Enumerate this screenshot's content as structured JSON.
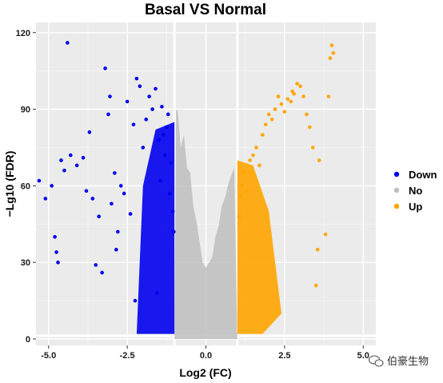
{
  "chart_data": {
    "type": "scatter",
    "title": "Basal VS Normal",
    "xlabel": "Log2 (FC)",
    "ylabel": "−Lg10 (FDR)",
    "xlim": [
      -5.4,
      5.4
    ],
    "ylim": [
      -2.5,
      124
    ],
    "x_ticks": [
      -5.0,
      -2.5,
      0.0,
      2.5,
      5.0
    ],
    "x_tick_labels": [
      "-5.0",
      "-2.5",
      "0.0",
      "2.5",
      "5.0"
    ],
    "y_ticks": [
      0,
      30,
      60,
      90,
      120
    ],
    "y_tick_labels": [
      "0",
      "30",
      "60",
      "90",
      "120"
    ],
    "threshold_lines": {
      "log2fc": [
        -1,
        1
      ],
      "neg_log10_fdr": 1.3
    },
    "grid": true,
    "legend_position": "right",
    "series": [
      {
        "name": "Down",
        "color": "#0000ee",
        "points": [
          [
            -5.3,
            62
          ],
          [
            -5.1,
            55
          ],
          [
            -4.9,
            60
          ],
          [
            -4.8,
            40
          ],
          [
            -4.75,
            34
          ],
          [
            -4.7,
            30
          ],
          [
            -4.6,
            70
          ],
          [
            -4.5,
            66
          ],
          [
            -4.4,
            116
          ],
          [
            -4.3,
            72
          ],
          [
            -4.1,
            68
          ],
          [
            -3.9,
            71
          ],
          [
            -3.8,
            58
          ],
          [
            -3.7,
            81
          ],
          [
            -3.6,
            55
          ],
          [
            -3.5,
            29
          ],
          [
            -3.4,
            48
          ],
          [
            -3.3,
            26
          ],
          [
            -3.2,
            106
          ],
          [
            -3.1,
            88
          ],
          [
            -3.05,
            95
          ],
          [
            -3.0,
            53
          ],
          [
            -2.9,
            65
          ],
          [
            -2.85,
            35
          ],
          [
            -2.8,
            42
          ],
          [
            -2.7,
            60
          ],
          [
            -2.6,
            57
          ],
          [
            -2.5,
            93
          ],
          [
            -2.4,
            49
          ],
          [
            -2.3,
            84
          ],
          [
            -2.25,
            15
          ],
          [
            -2.2,
            102
          ],
          [
            -2.1,
            99
          ],
          [
            -2.0,
            75
          ],
          [
            -1.9,
            86
          ],
          [
            -1.8,
            95
          ],
          [
            -1.7,
            90
          ],
          [
            -1.6,
            98
          ],
          [
            -1.55,
            18
          ],
          [
            -1.5,
            78
          ],
          [
            -1.45,
            62
          ],
          [
            -1.4,
            91
          ],
          [
            -1.35,
            80
          ],
          [
            -1.3,
            72
          ],
          [
            -1.25,
            83
          ],
          [
            -1.2,
            88
          ],
          [
            -1.15,
            57
          ],
          [
            -1.1,
            69
          ],
          [
            -1.05,
            50
          ],
          [
            -1.02,
            42
          ]
        ]
      },
      {
        "name": "No",
        "color": "#bebebe",
        "points": [
          [
            -0.95,
            89
          ],
          [
            -0.9,
            90
          ],
          [
            -0.8,
            75
          ],
          [
            -0.7,
            80
          ],
          [
            -0.6,
            67
          ],
          [
            -0.5,
            65
          ],
          [
            -0.4,
            52
          ],
          [
            -0.3,
            46
          ],
          [
            -0.2,
            38
          ],
          [
            -0.1,
            30
          ],
          [
            0.0,
            28
          ],
          [
            0.1,
            30
          ],
          [
            0.2,
            32
          ],
          [
            0.3,
            40
          ],
          [
            0.4,
            44
          ],
          [
            0.5,
            52
          ],
          [
            0.6,
            55
          ],
          [
            0.7,
            60
          ],
          [
            0.8,
            64
          ],
          [
            0.9,
            67
          ]
        ]
      },
      {
        "name": "Up",
        "color": "#ffa500",
        "points": [
          [
            1.05,
            48
          ],
          [
            1.1,
            56
          ],
          [
            1.15,
            60
          ],
          [
            1.2,
            65
          ],
          [
            1.3,
            58
          ],
          [
            1.4,
            70
          ],
          [
            1.5,
            72
          ],
          [
            1.6,
            75
          ],
          [
            1.7,
            68
          ],
          [
            1.8,
            80
          ],
          [
            1.9,
            84
          ],
          [
            2.0,
            88
          ],
          [
            2.1,
            86
          ],
          [
            2.2,
            90
          ],
          [
            2.3,
            95
          ],
          [
            2.4,
            92
          ],
          [
            2.5,
            89
          ],
          [
            2.6,
            94
          ],
          [
            2.7,
            93
          ],
          [
            2.75,
            97
          ],
          [
            2.8,
            96
          ],
          [
            2.9,
            100
          ],
          [
            3.0,
            99
          ],
          [
            3.1,
            95
          ],
          [
            3.2,
            88
          ],
          [
            3.3,
            83
          ],
          [
            3.4,
            75
          ],
          [
            3.5,
            21
          ],
          [
            3.55,
            35
          ],
          [
            3.6,
            70
          ],
          [
            3.8,
            41
          ],
          [
            3.9,
            95
          ],
          [
            3.95,
            110
          ],
          [
            4.0,
            115
          ],
          [
            4.05,
            112
          ]
        ]
      }
    ]
  },
  "watermark": {
    "text": "伯豪生物",
    "icon": "wechat-icon"
  }
}
